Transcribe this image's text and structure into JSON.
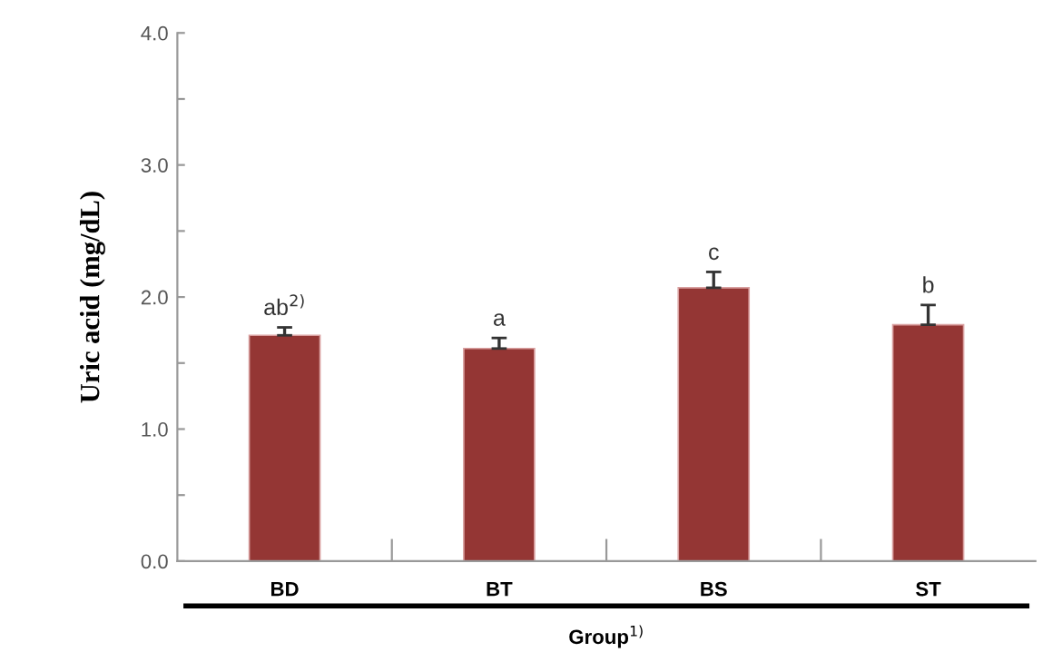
{
  "chart_data": {
    "type": "bar",
    "categories": [
      "BD",
      "BT",
      "BS",
      "ST"
    ],
    "values": [
      1.71,
      1.61,
      2.07,
      1.79
    ],
    "color": "#943634",
    "errors": [
      [
        1.71,
        1.77
      ],
      [
        1.61,
        1.69
      ],
      [
        2.07,
        2.19
      ],
      [
        1.79,
        1.94
      ]
    ],
    "ylabel": "Uric acid (mg/dL)",
    "xlabel": "Group$^{1)}$",
    "ylim": [
      0,
      4
    ],
    "yticks": [
      {
        "value": 0,
        "label": "0.0"
      },
      {
        "value": 0.5,
        "label": null
      },
      {
        "value": 1,
        "label": "1.0"
      },
      {
        "value": 1.5,
        "label": null
      },
      {
        "value": 2,
        "label": "2.0"
      },
      {
        "value": 2.5,
        "label": null
      },
      {
        "value": 3,
        "label": "3.0"
      },
      {
        "value": 3.5,
        "label": null
      },
      {
        "value": 4,
        "label": "4.0"
      }
    ],
    "annotations": [
      {
        "text": "ab$^{2)}$",
        "x": "BD",
        "y": 1.77
      },
      {
        "text": "a",
        "x": "BT",
        "y": 1.69
      },
      {
        "text": "c",
        "x": "BS",
        "y": 2.19
      },
      {
        "text": "b",
        "x": "ST",
        "y": 1.94
      }
    ],
    "grid": false,
    "legend": false
  }
}
